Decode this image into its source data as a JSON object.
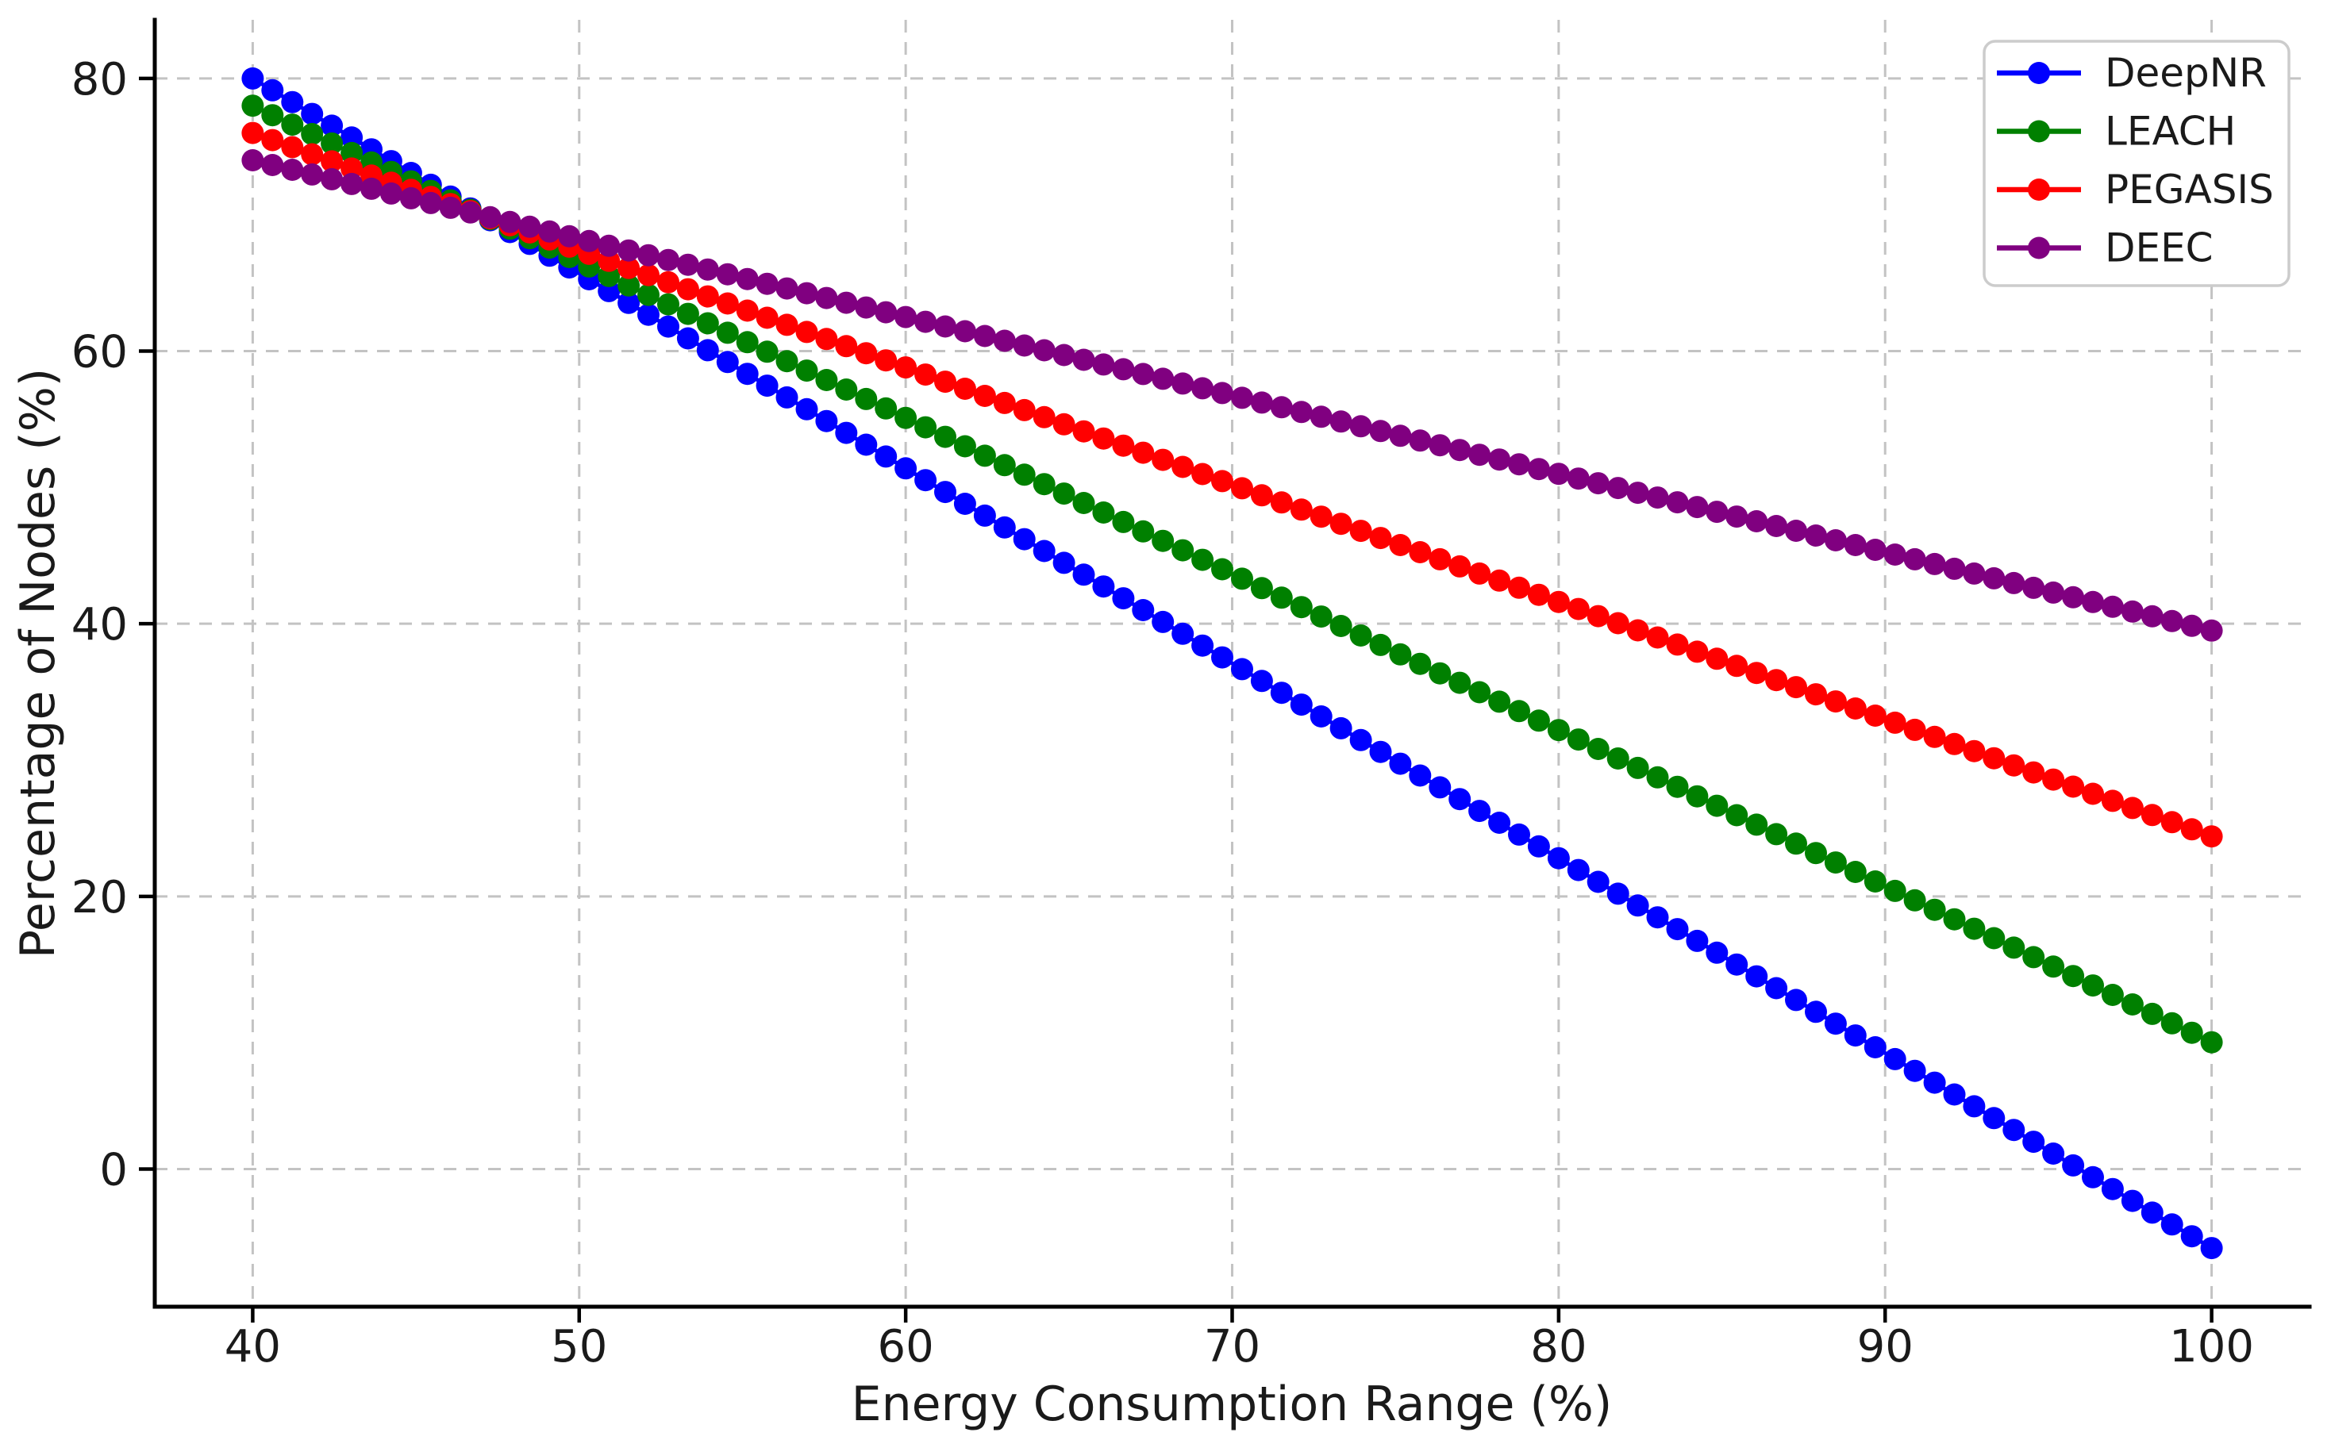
{
  "figure": {
    "kind": "line-chart-figure",
    "background_color": "#ffffff",
    "text_color": "#1a1a1a",
    "spine_color": "#000000",
    "grid_color": "#c3c3c3"
  },
  "chart_data": {
    "type": "line",
    "title": "",
    "xlabel": "Energy Consumption Range (%)",
    "ylabel": "Percentage of Nodes (%)",
    "xlim": [
      37,
      103
    ],
    "ylim": [
      -10.1,
      84.3
    ],
    "xticks": [
      40,
      50,
      60,
      70,
      80,
      90,
      100
    ],
    "yticks": [
      0,
      20,
      40,
      60,
      80
    ],
    "grid": {
      "visible": true,
      "style": "dashed",
      "axisbelow": true
    },
    "marker": {
      "shape": "circle",
      "radius_px": 14
    },
    "x_sampling": {
      "start": 40,
      "end": 100,
      "n_points": 100
    },
    "legend": {
      "position": "upper-right",
      "border_color": "#cccccc",
      "background": "#ffffff"
    },
    "series": [
      {
        "name": "DeepNR",
        "color": "#0000ff",
        "trend": "linear",
        "y_start": 80.0,
        "y_end": -5.8,
        "x_at_ticks": [
          40,
          50,
          60,
          70,
          80,
          90,
          100
        ],
        "values_at_ticks": [
          80.0,
          65.7,
          51.4,
          37.1,
          22.8,
          8.5,
          -5.8
        ]
      },
      {
        "name": "LEACH",
        "color": "#008000",
        "trend": "linear",
        "y_start": 78.0,
        "y_end": 9.3,
        "x_at_ticks": [
          40,
          50,
          60,
          70,
          80,
          90,
          100
        ],
        "values_at_ticks": [
          78.0,
          66.6,
          55.1,
          43.7,
          32.2,
          20.8,
          9.3
        ]
      },
      {
        "name": "PEGASIS",
        "color": "#ff0000",
        "trend": "linear",
        "y_start": 76.0,
        "y_end": 24.4,
        "x_at_ticks": [
          40,
          50,
          60,
          70,
          80,
          90,
          100
        ],
        "values_at_ticks": [
          76.0,
          67.4,
          58.8,
          50.2,
          41.6,
          33.0,
          24.4
        ]
      },
      {
        "name": "DEEC",
        "color": "#800080",
        "trend": "linear",
        "y_start": 74.0,
        "y_end": 39.5,
        "x_at_ticks": [
          40,
          50,
          60,
          70,
          80,
          90,
          100
        ],
        "values_at_ticks": [
          74.0,
          68.25,
          62.5,
          56.75,
          51.0,
          45.25,
          39.5
        ]
      }
    ]
  }
}
